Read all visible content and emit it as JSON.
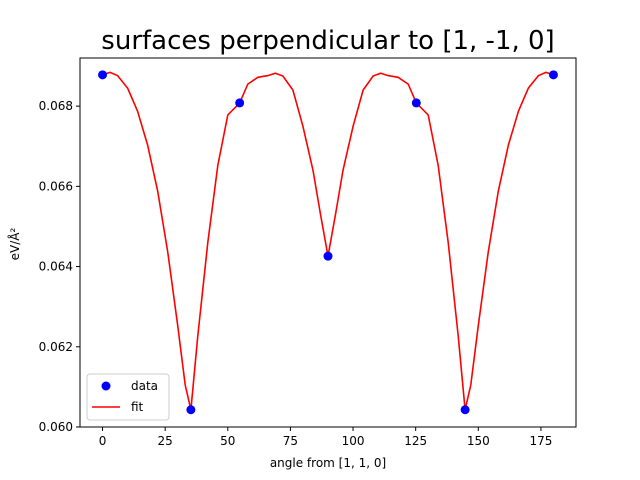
{
  "chart_data": {
    "type": "scatter",
    "title": "surfaces perpendicular to [1, -1, 0]",
    "xlabel": "angle from [1, 1, 0]",
    "ylabel": "eV/Å²",
    "xlim": [
      -9,
      189
    ],
    "ylim": [
      0.06,
      0.0692
    ],
    "x_ticks": [
      0,
      25,
      50,
      75,
      100,
      125,
      150,
      175
    ],
    "y_ticks": [
      0.06,
      0.062,
      0.064,
      0.066,
      0.068
    ],
    "y_tick_labels": [
      "0.060",
      "0.062",
      "0.064",
      "0.066",
      "0.068"
    ],
    "grid": false,
    "legend_position": "lower-left",
    "series": [
      {
        "name": "data",
        "kind": "scatter",
        "color": "#0000ff",
        "x": [
          0,
          35.26,
          54.74,
          90,
          125.26,
          144.74,
          180
        ],
        "y": [
          0.06878,
          0.06043,
          0.06808,
          0.06426,
          0.06808,
          0.06043,
          0.06878
        ]
      },
      {
        "name": "fit",
        "kind": "line",
        "color": "#ff0000",
        "x": [
          0,
          3,
          6,
          10,
          14,
          18,
          22,
          26,
          30,
          33,
          35.26,
          38,
          42,
          46,
          50,
          54.74,
          58,
          62,
          66,
          69,
          72,
          76,
          80,
          84,
          87,
          90,
          93,
          96,
          100,
          104,
          108,
          111,
          114,
          118,
          122,
          125.26,
          130,
          134,
          138,
          142,
          144.74,
          147,
          150,
          154,
          158,
          162,
          166,
          170,
          174,
          177,
          180
        ],
        "y": [
          0.06878,
          0.06884,
          0.06876,
          0.06845,
          0.06787,
          0.06703,
          0.06588,
          0.06437,
          0.06253,
          0.06105,
          0.06043,
          0.06225,
          0.0646,
          0.06652,
          0.06778,
          0.06808,
          0.06855,
          0.06872,
          0.06876,
          0.06882,
          0.06875,
          0.0684,
          0.0675,
          0.0664,
          0.0653,
          0.06426,
          0.0653,
          0.0664,
          0.0675,
          0.0684,
          0.06875,
          0.06882,
          0.06876,
          0.06872,
          0.06855,
          0.06808,
          0.06778,
          0.06652,
          0.0646,
          0.06225,
          0.06043,
          0.06105,
          0.06253,
          0.06437,
          0.06588,
          0.06703,
          0.06787,
          0.06845,
          0.06876,
          0.06884,
          0.06878
        ]
      }
    ]
  }
}
